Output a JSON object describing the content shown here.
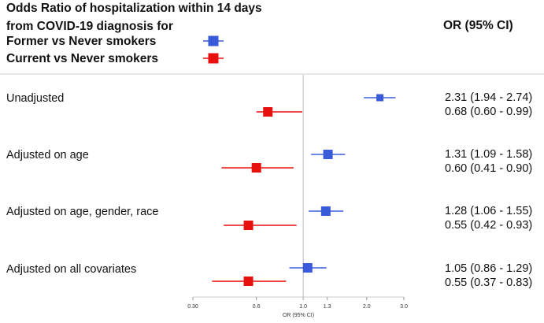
{
  "chart_data": {
    "type": "forest",
    "title_lines": [
      "Odds Ratio of hospitalization within 14 days",
      "from COVID-19 diagnosis for"
    ],
    "series": [
      {
        "name": "Former vs Never smokers",
        "color": "#3a5bd9"
      },
      {
        "name": "Current vs Never smokers",
        "color": "#e80f0f"
      }
    ],
    "column_header": "OR (95% CI)",
    "xlabel": "OR (95% CI)",
    "x_scale": "log",
    "xlim": [
      0.3,
      3.0
    ],
    "reference_line": 1.0,
    "x_ticks": [
      {
        "value": 0.3,
        "label": "0.30"
      },
      {
        "value": 0.6,
        "label": "0.6"
      },
      {
        "value": 1.0,
        "label": "1.0"
      },
      {
        "value": 1.3,
        "label": "1.3"
      },
      {
        "value": 2.0,
        "label": "2.0"
      },
      {
        "value": 3.0,
        "label": "3.0"
      }
    ],
    "groups": [
      {
        "label": "Unadjusted",
        "former": {
          "or": 2.31,
          "lo": 1.94,
          "hi": 2.74,
          "text": "2.31 (1.94 - 2.74)"
        },
        "current": {
          "or": 0.68,
          "lo": 0.6,
          "hi": 0.99,
          "text": "0.68 (0.60 - 0.99)"
        }
      },
      {
        "label": "Adjusted on age",
        "former": {
          "or": 1.31,
          "lo": 1.09,
          "hi": 1.58,
          "text": "1.31 (1.09 - 1.58)"
        },
        "current": {
          "or": 0.6,
          "lo": 0.41,
          "hi": 0.9,
          "text": "0.60 (0.41 - 0.90)"
        }
      },
      {
        "label": "Adjusted on age, gender, race",
        "former": {
          "or": 1.28,
          "lo": 1.06,
          "hi": 1.55,
          "text": "1.28 (1.06 - 1.55)"
        },
        "current": {
          "or": 0.55,
          "lo": 0.42,
          "hi": 0.93,
          "text": "0.55 (0.42 - 0.93)"
        }
      },
      {
        "label": "Adjusted on all covariates",
        "former": {
          "or": 1.05,
          "lo": 0.86,
          "hi": 1.29,
          "text": "1.05 (0.86 - 1.29)"
        },
        "current": {
          "or": 0.55,
          "lo": 0.37,
          "hi": 0.83,
          "text": "0.55 (0.37 - 0.83)"
        }
      }
    ]
  }
}
